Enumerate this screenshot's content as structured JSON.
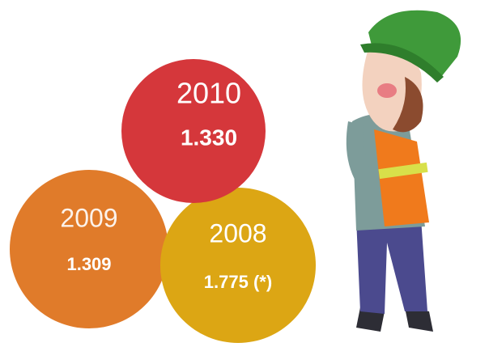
{
  "bubbles": [
    {
      "year": "2010",
      "value": "1.330"
    },
    {
      "year": "2009",
      "value": "1.309"
    },
    {
      "year": "2008",
      "value": "1.775 (*)"
    }
  ]
}
